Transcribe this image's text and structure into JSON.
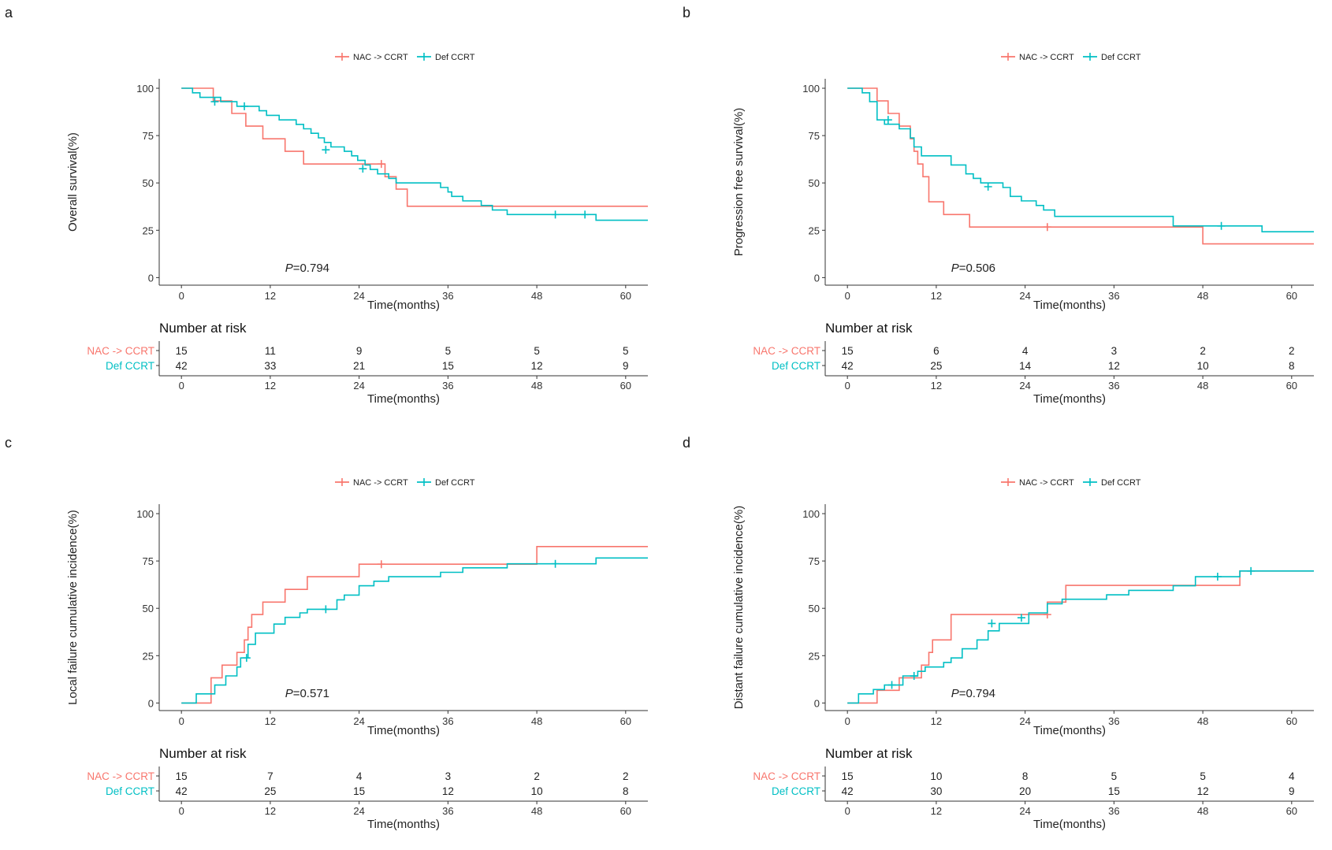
{
  "chart_data": [
    {
      "panel": "a",
      "type": "line",
      "step": true,
      "legend": {
        "position": "top-center",
        "entries": [
          "NAC -> CCRT",
          "Def CCRT"
        ]
      },
      "ylabel": "Overall survival(%)",
      "xlabel": "Time(months)",
      "xlim": [
        -3,
        63
      ],
      "ylim": [
        -4,
        105
      ],
      "xticks": [
        0,
        12,
        24,
        36,
        48,
        60
      ],
      "yticks": [
        0,
        25,
        50,
        75,
        100
      ],
      "pvalue": {
        "prefix": "P",
        "value": "=0.794",
        "x": 14,
        "y": 3
      },
      "series": [
        {
          "name": "NAC -> CCRT",
          "color": "#f8766d",
          "steps": [
            [
              0,
              100
            ],
            [
              4.3,
              93.3
            ],
            [
              6.8,
              86.7
            ],
            [
              8.7,
              80
            ],
            [
              11,
              73.3
            ],
            [
              14,
              66.7
            ],
            [
              16.5,
              60
            ],
            [
              27.5,
              53.3
            ],
            [
              29,
              46.7
            ],
            [
              30.5,
              37.7
            ],
            [
              63,
              37.7
            ]
          ],
          "censors": [
            [
              27,
              60
            ]
          ]
        },
        {
          "name": "Def CCRT",
          "color": "#00bfc4",
          "steps": [
            [
              0,
              100
            ],
            [
              1.5,
              97.6
            ],
            [
              2.5,
              95.2
            ],
            [
              5.3,
              92.9
            ],
            [
              7.5,
              90.5
            ],
            [
              10.5,
              88.1
            ],
            [
              11.5,
              85.7
            ],
            [
              13.2,
              83.3
            ],
            [
              15.5,
              80.9
            ],
            [
              16.5,
              78.6
            ],
            [
              17.5,
              76.2
            ],
            [
              18.5,
              73.8
            ],
            [
              19.3,
              71.4
            ],
            [
              20.2,
              69
            ],
            [
              22,
              66.7
            ],
            [
              23,
              64.3
            ],
            [
              23.8,
              61.9
            ],
            [
              24.8,
              59.5
            ],
            [
              25.5,
              57.1
            ],
            [
              26.5,
              54.8
            ],
            [
              28,
              52.4
            ],
            [
              29,
              50
            ],
            [
              35,
              47.6
            ],
            [
              36,
              45.2
            ],
            [
              36.5,
              42.9
            ],
            [
              38,
              40.5
            ],
            [
              40.5,
              38.1
            ],
            [
              42,
              35.7
            ],
            [
              44,
              33.3
            ],
            [
              56,
              30.3
            ],
            [
              63,
              30.3
            ]
          ],
          "censors": [
            [
              4.5,
              92.9
            ],
            [
              8.5,
              90.5
            ],
            [
              19.5,
              67.5
            ],
            [
              24.5,
              57.5
            ],
            [
              50.5,
              33.3
            ],
            [
              54.5,
              33.3
            ]
          ]
        }
      ],
      "risk_table": {
        "title": "Number at risk",
        "rows": [
          {
            "group": "NAC -> CCRT",
            "values": [
              "15",
              "11",
              "9",
              "5",
              "5",
              "5"
            ]
          },
          {
            "group": "Def CCRT",
            "values": [
              "42",
              "33",
              "21",
              "15",
              "12",
              "9"
            ]
          }
        ],
        "xlabel": "Time(months)"
      }
    },
    {
      "panel": "b",
      "type": "line",
      "step": true,
      "legend": {
        "position": "top-center",
        "entries": [
          "NAC -> CCRT",
          "Def CCRT"
        ]
      },
      "ylabel": "Progression free survival(%)",
      "xlabel": "Time(months)",
      "xlim": [
        -3,
        63
      ],
      "ylim": [
        -4,
        105
      ],
      "xticks": [
        0,
        12,
        24,
        36,
        48,
        60
      ],
      "yticks": [
        0,
        25,
        50,
        75,
        100
      ],
      "pvalue": {
        "prefix": "P",
        "value": "=0.506",
        "x": 14,
        "y": 3
      },
      "series": [
        {
          "name": "NAC -> CCRT",
          "color": "#f8766d",
          "steps": [
            [
              0,
              100
            ],
            [
              4,
              93.3
            ],
            [
              5.5,
              86.7
            ],
            [
              7,
              80
            ],
            [
              8.5,
              73.3
            ],
            [
              9,
              66.7
            ],
            [
              9.5,
              60
            ],
            [
              10.2,
              53.3
            ],
            [
              11,
              40
            ],
            [
              12.5,
              40
            ],
            [
              13,
              33.3
            ],
            [
              16.5,
              26.7
            ],
            [
              48,
              17.8
            ],
            [
              63,
              17.8
            ]
          ],
          "censors": [
            [
              27,
              26.7
            ]
          ]
        },
        {
          "name": "Def CCRT",
          "color": "#00bfc4",
          "steps": [
            [
              0,
              100
            ],
            [
              2,
              97.6
            ],
            [
              3,
              92.9
            ],
            [
              4,
              83.3
            ],
            [
              5,
              81
            ],
            [
              7,
              78.6
            ],
            [
              8.5,
              73.8
            ],
            [
              9,
              69
            ],
            [
              10,
              64.3
            ],
            [
              14,
              59.5
            ],
            [
              16,
              54.8
            ],
            [
              17,
              52.4
            ],
            [
              18,
              50
            ],
            [
              21,
              47.6
            ],
            [
              22,
              42.9
            ],
            [
              23.5,
              40.5
            ],
            [
              25.5,
              38.1
            ],
            [
              26.5,
              35.7
            ],
            [
              28,
              32.3
            ],
            [
              44,
              27.3
            ],
            [
              56,
              24.2
            ],
            [
              63,
              24.2
            ]
          ],
          "censors": [
            [
              5.5,
              83.3
            ],
            [
              19,
              48
            ],
            [
              50.5,
              27.3
            ]
          ]
        }
      ],
      "risk_table": {
        "title": "Number at risk",
        "rows": [
          {
            "group": "NAC -> CCRT",
            "values": [
              "15",
              "6",
              "4",
              "3",
              "2",
              "2"
            ]
          },
          {
            "group": "Def CCRT",
            "values": [
              "42",
              "25",
              "14",
              "12",
              "10",
              "8"
            ]
          }
        ],
        "xlabel": "Time(months)"
      }
    },
    {
      "panel": "c",
      "type": "line",
      "step": true,
      "legend": {
        "position": "top-center",
        "entries": [
          "NAC -> CCRT",
          "Def CCRT"
        ]
      },
      "ylabel": "Local failure cumulative incidence(%)",
      "xlabel": "Time(months)",
      "xlim": [
        -3,
        63
      ],
      "ylim": [
        -4,
        105
      ],
      "xticks": [
        0,
        12,
        24,
        36,
        48,
        60
      ],
      "yticks": [
        0,
        25,
        50,
        75,
        100
      ],
      "pvalue": {
        "prefix": "P",
        "value": "=0.571",
        "x": 14,
        "y": 3
      },
      "series": [
        {
          "name": "NAC -> CCRT",
          "color": "#f8766d",
          "steps": [
            [
              0,
              0
            ],
            [
              4,
              13.3
            ],
            [
              5.5,
              20
            ],
            [
              7.5,
              26.7
            ],
            [
              8.5,
              33.3
            ],
            [
              9,
              40
            ],
            [
              9.5,
              46.7
            ],
            [
              11,
              53.3
            ],
            [
              14,
              60
            ],
            [
              17,
              66.7
            ],
            [
              24,
              73.3
            ],
            [
              48,
              82.6
            ],
            [
              63,
              82.6
            ]
          ],
          "censors": [
            [
              27,
              73.3
            ]
          ]
        },
        {
          "name": "Def CCRT",
          "color": "#00bfc4",
          "steps": [
            [
              0,
              0
            ],
            [
              2,
              4.8
            ],
            [
              4.5,
              9.5
            ],
            [
              6,
              14.3
            ],
            [
              7.5,
              19
            ],
            [
              8,
              23.8
            ],
            [
              9,
              31
            ],
            [
              10,
              36.9
            ],
            [
              12.5,
              41.7
            ],
            [
              14,
              45.2
            ],
            [
              16,
              47.6
            ],
            [
              17,
              49.5
            ],
            [
              21,
              54.5
            ],
            [
              22,
              57
            ],
            [
              24,
              61.9
            ],
            [
              26,
              64.3
            ],
            [
              28,
              66.7
            ],
            [
              35,
              69
            ],
            [
              38,
              71.4
            ],
            [
              44,
              73.5
            ],
            [
              56,
              76.6
            ],
            [
              63,
              76.6
            ]
          ],
          "censors": [
            [
              8.8,
              23.8
            ],
            [
              19.5,
              49.5
            ],
            [
              50.5,
              73.5
            ]
          ]
        }
      ],
      "risk_table": {
        "title": "Number at risk",
        "rows": [
          {
            "group": "NAC -> CCRT",
            "values": [
              "15",
              "7",
              "4",
              "3",
              "2",
              "2"
            ]
          },
          {
            "group": "Def CCRT",
            "values": [
              "42",
              "25",
              "15",
              "12",
              "10",
              "8"
            ]
          }
        ],
        "xlabel": "Time(months)"
      }
    },
    {
      "panel": "d",
      "type": "line",
      "step": true,
      "legend": {
        "position": "top-center",
        "entries": [
          "NAC -> CCRT",
          "Def CCRT"
        ]
      },
      "ylabel": "Distant failure cumulative incidence(%)",
      "xlabel": "Time(months)",
      "xlim": [
        -3,
        63
      ],
      "ylim": [
        -4,
        105
      ],
      "xticks": [
        0,
        12,
        24,
        36,
        48,
        60
      ],
      "yticks": [
        0,
        25,
        50,
        75,
        100
      ],
      "pvalue": {
        "prefix": "P",
        "value": "=0.794",
        "x": 14,
        "y": 3
      },
      "series": [
        {
          "name": "NAC -> CCRT",
          "color": "#f8766d",
          "steps": [
            [
              0,
              0
            ],
            [
              4,
              6.7
            ],
            [
              7,
              13.3
            ],
            [
              10,
              20
            ],
            [
              11,
              26.7
            ],
            [
              11.5,
              33.3
            ],
            [
              14,
              46.7
            ],
            [
              27,
              53.3
            ],
            [
              29.5,
              62.1
            ],
            [
              53,
              69.7
            ],
            [
              63,
              69.7
            ]
          ],
          "censors": [
            [
              27,
              46.7
            ]
          ]
        },
        {
          "name": "Def CCRT",
          "color": "#00bfc4",
          "steps": [
            [
              0,
              0
            ],
            [
              1.5,
              4.8
            ],
            [
              3.5,
              7.1
            ],
            [
              5,
              9.5
            ],
            [
              7.5,
              14.3
            ],
            [
              9.5,
              16.7
            ],
            [
              10.5,
              19
            ],
            [
              13,
              21.4
            ],
            [
              14,
              23.8
            ],
            [
              15.5,
              28.6
            ],
            [
              17.5,
              33.3
            ],
            [
              19,
              38.1
            ],
            [
              20.5,
              42
            ],
            [
              24.5,
              47.6
            ],
            [
              27,
              52.4
            ],
            [
              29,
              54.8
            ],
            [
              35,
              57.1
            ],
            [
              38,
              59.5
            ],
            [
              44,
              61.9
            ],
            [
              47,
              66.7
            ],
            [
              53,
              69.7
            ],
            [
              63,
              69.7
            ]
          ],
          "censors": [
            [
              6,
              9.5
            ],
            [
              9,
              14.3
            ],
            [
              19.5,
              42
            ],
            [
              23.5,
              45
            ],
            [
              50,
              66.7
            ],
            [
              54.5,
              69.7
            ]
          ]
        }
      ],
      "risk_table": {
        "title": "Number at risk",
        "rows": [
          {
            "group": "NAC -> CCRT",
            "values": [
              "15",
              "10",
              "8",
              "5",
              "5",
              "4"
            ]
          },
          {
            "group": "Def CCRT",
            "values": [
              "42",
              "30",
              "20",
              "15",
              "12",
              "9"
            ]
          }
        ],
        "xlabel": "Time(months)"
      }
    }
  ]
}
